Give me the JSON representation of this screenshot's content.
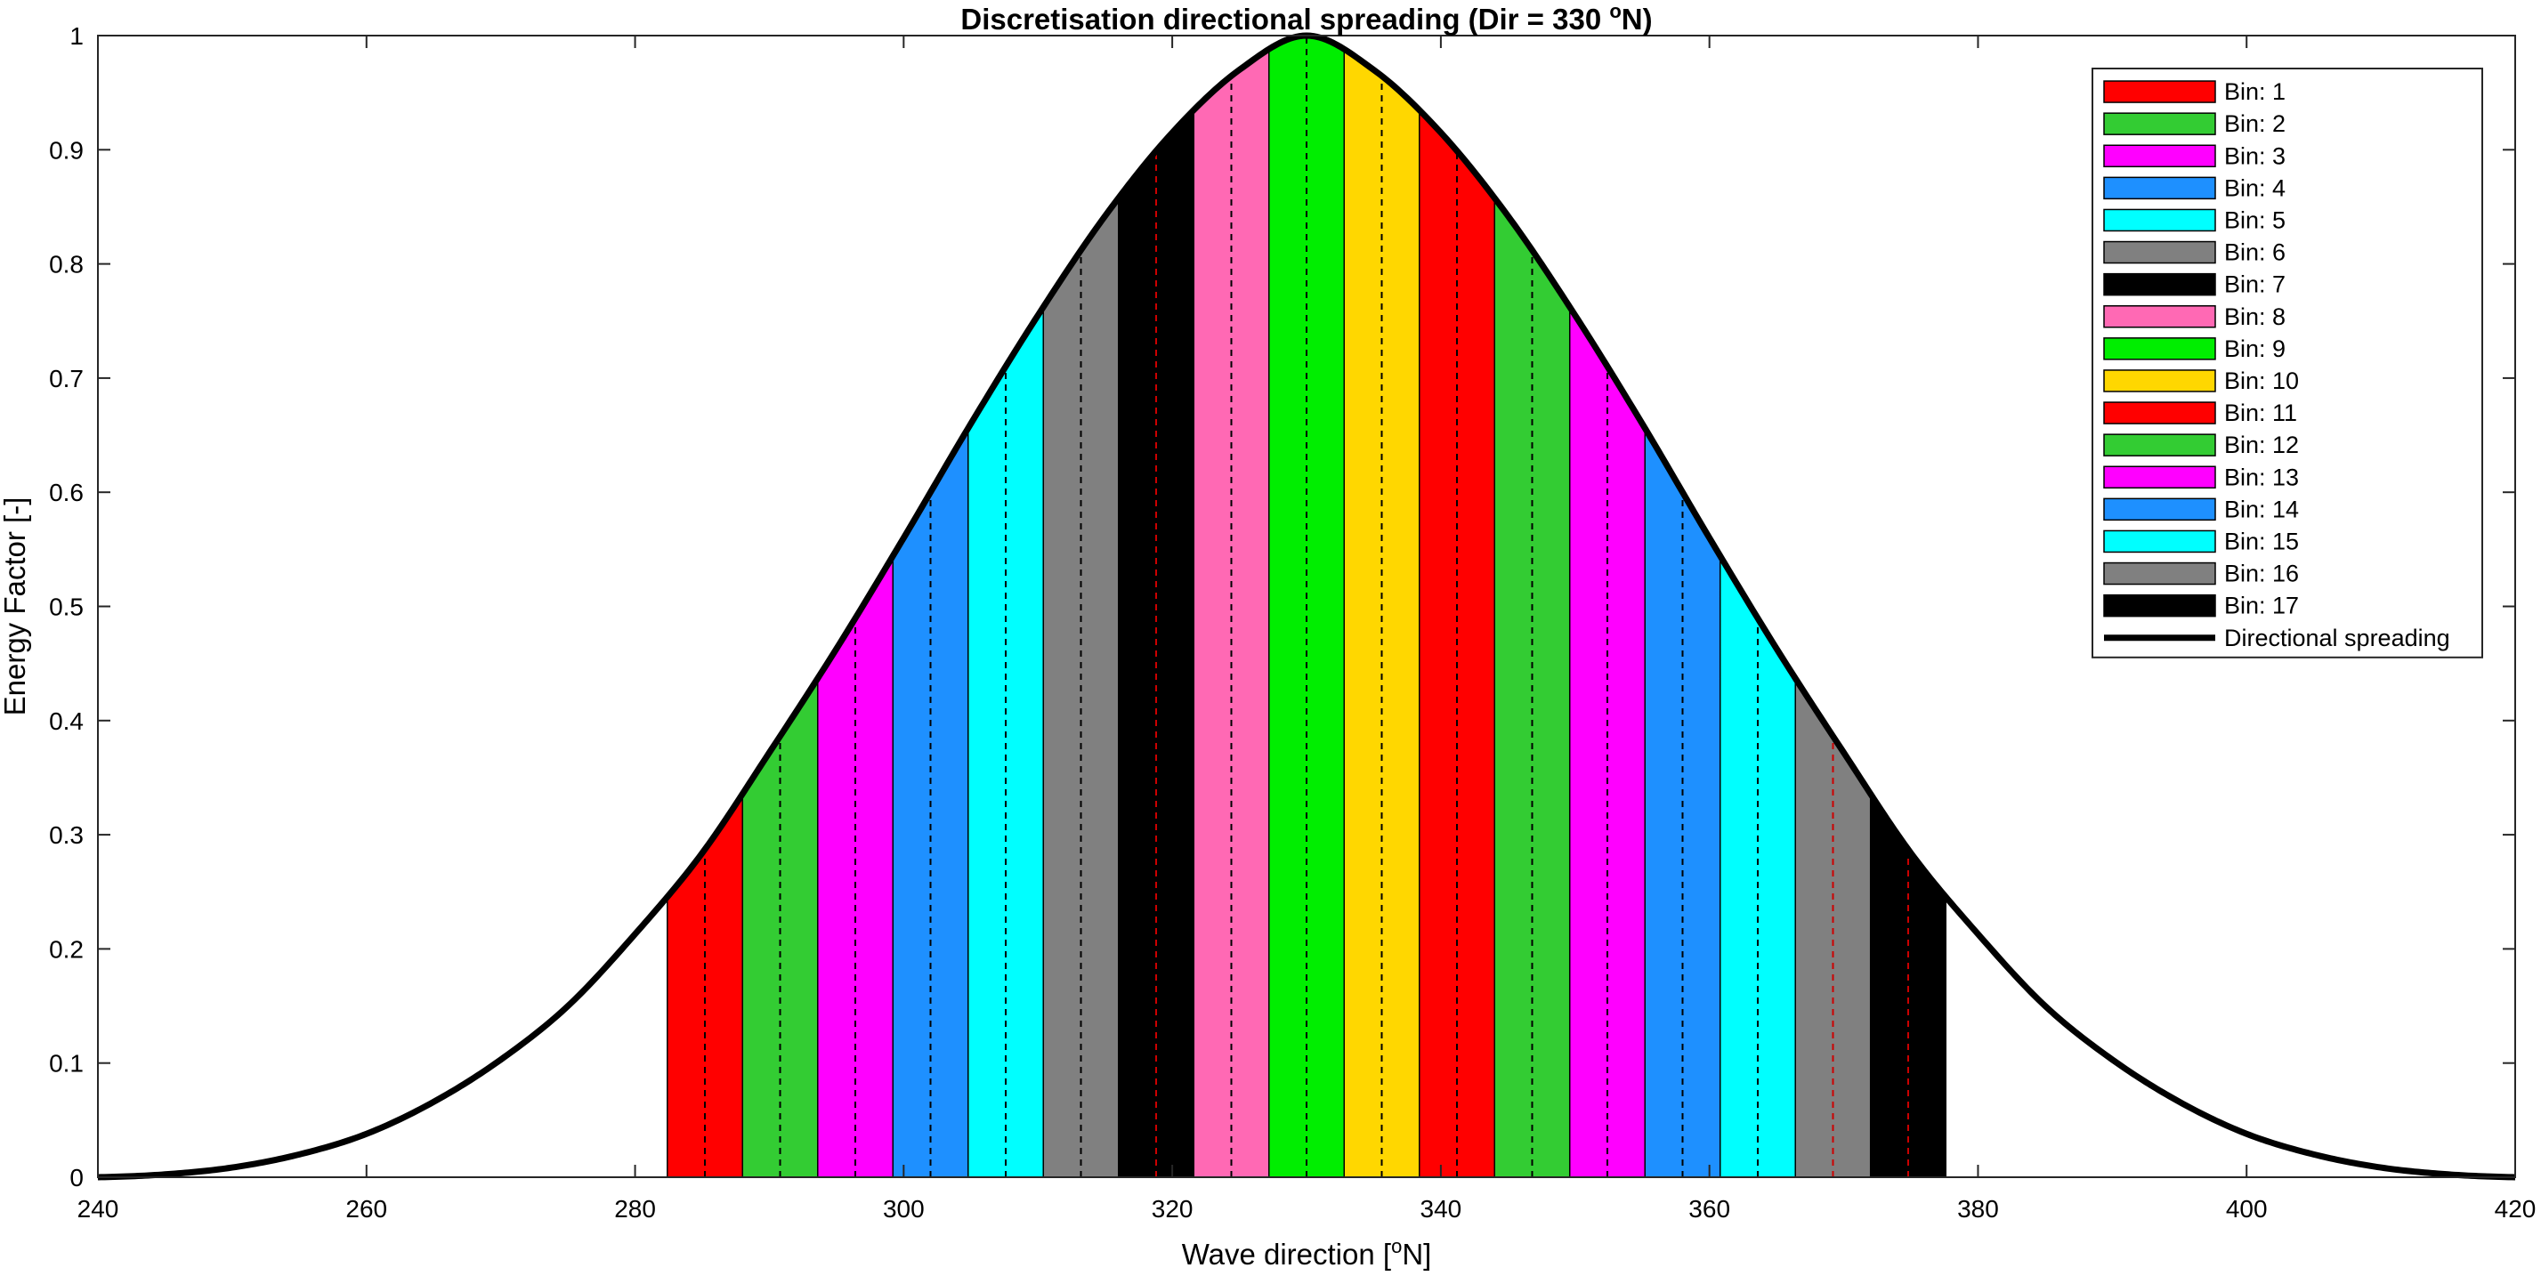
{
  "chart_data": {
    "type": "area",
    "title": "Discretisation directional spreading (Dir = 330 °N)",
    "title_main": "Discretisation directional spreading (Dir = 330 ",
    "title_sup": "o",
    "title_end": "N)",
    "xlabel_main": "Wave direction [",
    "xlabel_sup": "o",
    "xlabel_end": "N]",
    "ylabel": "Energy Factor [-]",
    "xlim": [
      240,
      420
    ],
    "ylim": [
      0,
      1
    ],
    "x_ticks": [
      "240",
      "260",
      "280",
      "300",
      "320",
      "340",
      "360",
      "380",
      "400",
      "420"
    ],
    "y_ticks": [
      "0",
      "0.1",
      "0.2",
      "0.3",
      "0.4",
      "0.5",
      "0.6",
      "0.7",
      "0.8",
      "0.9",
      "1"
    ],
    "grid": false,
    "legend_position": "top-right",
    "mean_direction": 330,
    "spreading_curve": {
      "name": "Directional spreading",
      "color": "#000000",
      "x": [
        240,
        245,
        250,
        255,
        260,
        265,
        270,
        275,
        280,
        285,
        290,
        295,
        300,
        305,
        310,
        315,
        320,
        325,
        330,
        335,
        340,
        345,
        350,
        355,
        360,
        365,
        370,
        375,
        380,
        385,
        390,
        395,
        400,
        405,
        410,
        415,
        420
      ],
      "y": [
        0.0,
        0.0025,
        0.0085,
        0.02,
        0.038,
        0.066,
        0.103,
        0.15,
        0.213,
        0.284,
        0.372,
        0.463,
        0.56,
        0.66,
        0.755,
        0.842,
        0.915,
        0.97,
        1.0,
        0.97,
        0.915,
        0.842,
        0.755,
        0.66,
        0.56,
        0.463,
        0.372,
        0.284,
        0.213,
        0.15,
        0.103,
        0.066,
        0.038,
        0.02,
        0.0085,
        0.0025,
        0.0
      ]
    },
    "bins": [
      {
        "name": "Bin: 1",
        "x0": 282.4,
        "x1": 288.0,
        "center": 285.2,
        "color": "#ff0000",
        "center_line_color": "#000000"
      },
      {
        "name": "Bin: 2",
        "x0": 288.0,
        "x1": 293.6,
        "center": 290.8,
        "color": "#33cc33",
        "center_line_color": "#000000"
      },
      {
        "name": "Bin: 3",
        "x0": 293.6,
        "x1": 299.2,
        "center": 296.4,
        "color": "#ff00ff",
        "center_line_color": "#000000"
      },
      {
        "name": "Bin: 4",
        "x0": 299.2,
        "x1": 304.8,
        "center": 302.0,
        "color": "#1e90ff",
        "center_line_color": "#000000"
      },
      {
        "name": "Bin: 5",
        "x0": 304.8,
        "x1": 310.4,
        "center": 307.6,
        "color": "#00ffff",
        "center_line_color": "#000000"
      },
      {
        "name": "Bin: 6",
        "x0": 310.4,
        "x1": 316.0,
        "center": 313.2,
        "color": "#808080",
        "center_line_color": "#000000"
      },
      {
        "name": "Bin: 7",
        "x0": 316.0,
        "x1": 321.6,
        "center": 318.8,
        "color": "#000000",
        "center_line_color": "#cc0000"
      },
      {
        "name": "Bin: 8",
        "x0": 321.6,
        "x1": 327.2,
        "center": 324.4,
        "color": "#ff69b4",
        "center_line_color": "#000000"
      },
      {
        "name": "Bin: 9",
        "x0": 327.2,
        "x1": 332.8,
        "center": 330.0,
        "color": "#00ee00",
        "center_line_color": "#000000"
      },
      {
        "name": "Bin: 10",
        "x0": 332.8,
        "x1": 338.4,
        "center": 335.6,
        "color": "#ffd700",
        "center_line_color": "#000000"
      },
      {
        "name": "Bin: 11",
        "x0": 338.4,
        "x1": 344.0,
        "center": 341.2,
        "color": "#ff0000",
        "center_line_color": "#000000"
      },
      {
        "name": "Bin: 12",
        "x0": 344.0,
        "x1": 349.6,
        "center": 346.8,
        "color": "#33cc33",
        "center_line_color": "#000000"
      },
      {
        "name": "Bin: 13",
        "x0": 349.6,
        "x1": 355.2,
        "center": 352.4,
        "color": "#ff00ff",
        "center_line_color": "#000000"
      },
      {
        "name": "Bin: 14",
        "x0": 355.2,
        "x1": 360.8,
        "center": 358.0,
        "color": "#1e90ff",
        "center_line_color": "#000000"
      },
      {
        "name": "Bin: 15",
        "x0": 360.8,
        "x1": 366.4,
        "center": 363.6,
        "color": "#00ffff",
        "center_line_color": "#000000"
      },
      {
        "name": "Bin: 16",
        "x0": 366.4,
        "x1": 372.0,
        "center": 369.2,
        "color": "#808080",
        "center_line_color": "#cc0000"
      },
      {
        "name": "Bin: 17",
        "x0": 372.0,
        "x1": 377.6,
        "center": 374.8,
        "color": "#000000",
        "center_line_color": "#cc0000"
      }
    ]
  }
}
